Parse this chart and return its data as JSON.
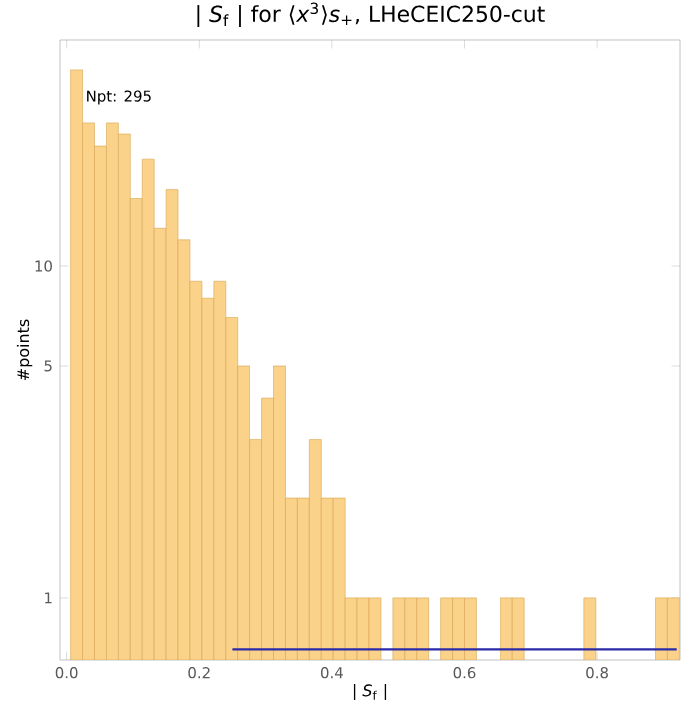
{
  "chart_data": {
    "type": "histogram",
    "title": "| *S*$_{f}$ | for ⟨*x*$^{3}$⟩*s*$_{+}$, LHeCEIC250-cut",
    "xlabel": "| *S*$_{f}$ |",
    "ylabel": "#points",
    "annotations": [
      "Npt: 295"
    ],
    "bins": [
      0.006,
      0.024,
      0.042,
      0.06,
      0.078,
      0.096,
      0.114,
      0.132,
      0.15,
      0.168,
      0.186,
      0.204,
      0.222,
      0.24,
      0.258,
      0.276,
      0.294,
      0.312,
      0.33,
      0.348,
      0.366,
      0.384,
      0.402,
      0.42,
      0.438,
      0.456,
      0.474,
      0.492,
      0.51,
      0.528,
      0.546,
      0.564,
      0.582,
      0.6,
      0.618,
      0.636,
      0.654,
      0.672,
      0.69,
      0.708,
      0.726,
      0.744,
      0.762,
      0.78,
      0.798,
      0.816,
      0.834,
      0.852,
      0.87,
      0.888,
      0.906,
      0.924
    ],
    "values": [
      39,
      27,
      23,
      27,
      25,
      16,
      21,
      13,
      17,
      12,
      9,
      8,
      9,
      7,
      5,
      3,
      4,
      5,
      2,
      2,
      3,
      2,
      2,
      1,
      1,
      1,
      null,
      1,
      1,
      1,
      null,
      1,
      1,
      1,
      null,
      null,
      1,
      1,
      null,
      null,
      null,
      null,
      null,
      1,
      null,
      null,
      null,
      null,
      null,
      1,
      1
    ],
    "color": "#fbd28a",
    "series": [
      {
        "type": "line",
        "x": [
          0.25,
          0.92
        ],
        "values": [
          0.7,
          0.7
        ],
        "color": "#2a2aa8"
      }
    ],
    "log": "y",
    "grid": false,
    "xlim": [
      -0.01,
      0.925
    ],
    "ylim": [
      0.65,
      48
    ],
    "xticks": [
      {
        "value": 0.0,
        "label": "0.0"
      },
      {
        "value": 0.2,
        "label": "0.2"
      },
      {
        "value": 0.4,
        "label": "0.4"
      },
      {
        "value": 0.6,
        "label": "0.6"
      },
      {
        "value": 0.8,
        "label": "0.8"
      }
    ],
    "yticks": [
      1,
      5,
      10
    ]
  }
}
